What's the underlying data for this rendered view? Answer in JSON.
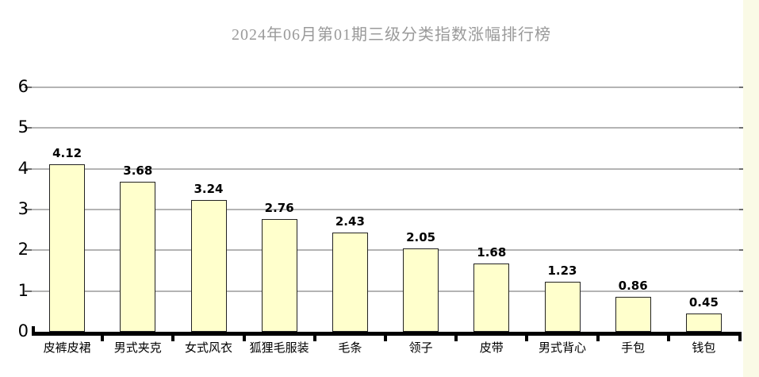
{
  "chart_data": {
    "type": "bar",
    "title": "2024年06月第01期三级分类指数涨幅排行榜",
    "categories": [
      "皮裤皮裙",
      "男式夹克",
      "女式风衣",
      "狐狸毛服装",
      "毛条",
      "领子",
      "皮带",
      "男式背心",
      "手包",
      "钱包"
    ],
    "values": [
      4.12,
      3.68,
      3.24,
      2.76,
      2.43,
      2.05,
      1.68,
      1.23,
      0.86,
      0.45
    ],
    "xlabel": "",
    "ylabel": "",
    "ylim": [
      0,
      6
    ],
    "ytick_labels": [
      "0",
      "1",
      "2",
      "3",
      "4",
      "5",
      "6"
    ],
    "ytick_interval": 1,
    "grid": true,
    "legend": false,
    "value_labels_shown": true
  },
  "colors": {
    "background": "#ffffff",
    "bar_fill": "#FFFFCC",
    "bar_border": "#222222",
    "gridline": "#b4b4b4",
    "grid_end_tick": "#6e6e6e",
    "axis": "#000000",
    "title_text": "#9a9a9a",
    "label_text": "#000000",
    "right_edge_strip": "#fafae6"
  }
}
